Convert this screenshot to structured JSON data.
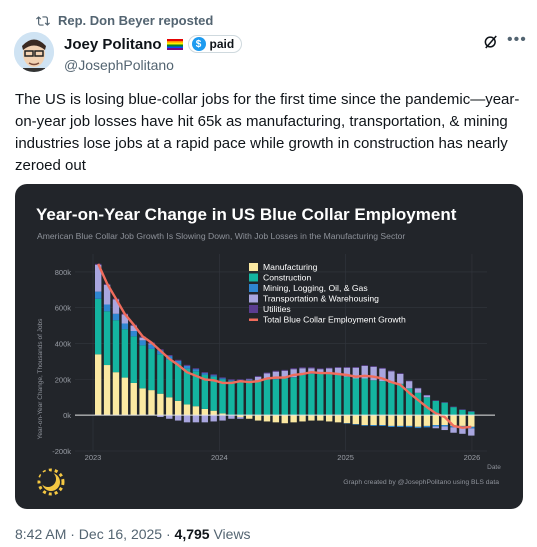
{
  "repost": {
    "text": "Rep. Don Beyer reposted",
    "icon": "repost-icon"
  },
  "author": {
    "name": "Joey Politano",
    "badge_label": "paid",
    "badge_symbol": "$",
    "handle": "@JosephPolitano"
  },
  "tweet": {
    "text": "The US is losing blue-collar jobs for the first time since the pandemic—year-on-year job losses have hit 65k as manufacturing, transportation, & mining industries lose jobs at a rapid pace while growth in construction has nearly zeroed out"
  },
  "meta": {
    "time": "8:42 AM · Dec 16, 2025 · ",
    "views": "4,795",
    "views_label": " Views"
  },
  "chart_data": {
    "type": "bar",
    "title": "Year-on-Year Change in US Blue Collar Employment",
    "subtitle": "American Blue Collar Job Growth Is Slowing Down, With Job Losses in the Manufacturing Sector",
    "ylabel": "Year-on-Year Change, Thousands of Jobs",
    "xlabel": "Date",
    "credit": "Graph created by @JosephPolitano using BLS data",
    "ylim": [
      -200,
      900
    ],
    "yticks": [
      -200,
      0,
      200,
      400,
      600,
      800
    ],
    "ytick_labels": [
      "-200k",
      "0k",
      "200k",
      "400k",
      "600k",
      "800k"
    ],
    "xticks": [
      "2023",
      "2024",
      "2025",
      "2026"
    ],
    "legend_position": "top-center",
    "stacked": true,
    "colors": {
      "Manufacturing": "#fbe9a2",
      "Construction": "#14b4a0",
      "Mining, Logging, Oil, & Gas": "#2f86d1",
      "Transportation & Warehousing": "#a9a6df",
      "Utilities": "#5b3d90",
      "Total": "#f06c5c"
    },
    "series": [
      {
        "name": "Manufacturing",
        "values": [
          340,
          280,
          240,
          210,
          180,
          150,
          140,
          120,
          100,
          80,
          60,
          50,
          35,
          25,
          10,
          0,
          -10,
          -20,
          -30,
          -35,
          -40,
          -45,
          -40,
          -35,
          -30,
          -30,
          -35,
          -40,
          -45,
          -50,
          -55,
          -55,
          -55,
          -60,
          -60,
          -60,
          -65,
          -60,
          -55,
          -55,
          -60,
          -60,
          -65
        ]
      },
      {
        "name": "Construction",
        "values": [
          310,
          300,
          290,
          270,
          260,
          240,
          230,
          220,
          210,
          205,
          200,
          195,
          190,
          190,
          190,
          190,
          190,
          195,
          190,
          200,
          200,
          205,
          210,
          225,
          230,
          230,
          230,
          225,
          215,
          205,
          205,
          195,
          190,
          180,
          175,
          150,
          125,
          100,
          80,
          70,
          45,
          30,
          20
        ]
      },
      {
        "name": "Mining, Logging, Oil, & Gas",
        "values": [
          40,
          38,
          36,
          32,
          30,
          28,
          25,
          22,
          20,
          18,
          15,
          12,
          10,
          8,
          6,
          5,
          5,
          4,
          4,
          3,
          3,
          3,
          2,
          2,
          2,
          2,
          1,
          0,
          -2,
          -3,
          -4,
          -5,
          -5,
          -6,
          -6,
          -7,
          -7,
          -8,
          -8,
          -8,
          -8,
          -9,
          -9
        ]
      },
      {
        "name": "Transportation & Warehousing",
        "values": [
          150,
          110,
          80,
          50,
          30,
          15,
          5,
          -10,
          -20,
          -30,
          -40,
          -40,
          -40,
          -35,
          -30,
          -20,
          -10,
          0,
          20,
          30,
          40,
          40,
          45,
          35,
          30,
          25,
          30,
          40,
          50,
          60,
          70,
          75,
          70,
          65,
          55,
          40,
          25,
          10,
          -10,
          -20,
          -30,
          -35,
          -40
        ]
      },
      {
        "name": "Utilities",
        "values": [
          5,
          5,
          5,
          5,
          5,
          6,
          6,
          6,
          6,
          6,
          6,
          5,
          5,
          5,
          5,
          5,
          5,
          5,
          5,
          5,
          5,
          5,
          5,
          5,
          5,
          4,
          4,
          4,
          4,
          4,
          4,
          4,
          4,
          4,
          4,
          3,
          3,
          3,
          3,
          3,
          3,
          3,
          3
        ]
      }
    ],
    "total": {
      "name": "Total Blue Collar Employment Growth",
      "values": [
        845,
        735,
        650,
        565,
        505,
        440,
        405,
        360,
        315,
        280,
        240,
        220,
        200,
        195,
        180,
        180,
        190,
        185,
        190,
        205,
        210,
        210,
        225,
        230,
        240,
        235,
        235,
        230,
        225,
        215,
        220,
        215,
        205,
        185,
        170,
        125,
        85,
        45,
        10,
        -10,
        -60,
        -70,
        -65
      ]
    }
  }
}
